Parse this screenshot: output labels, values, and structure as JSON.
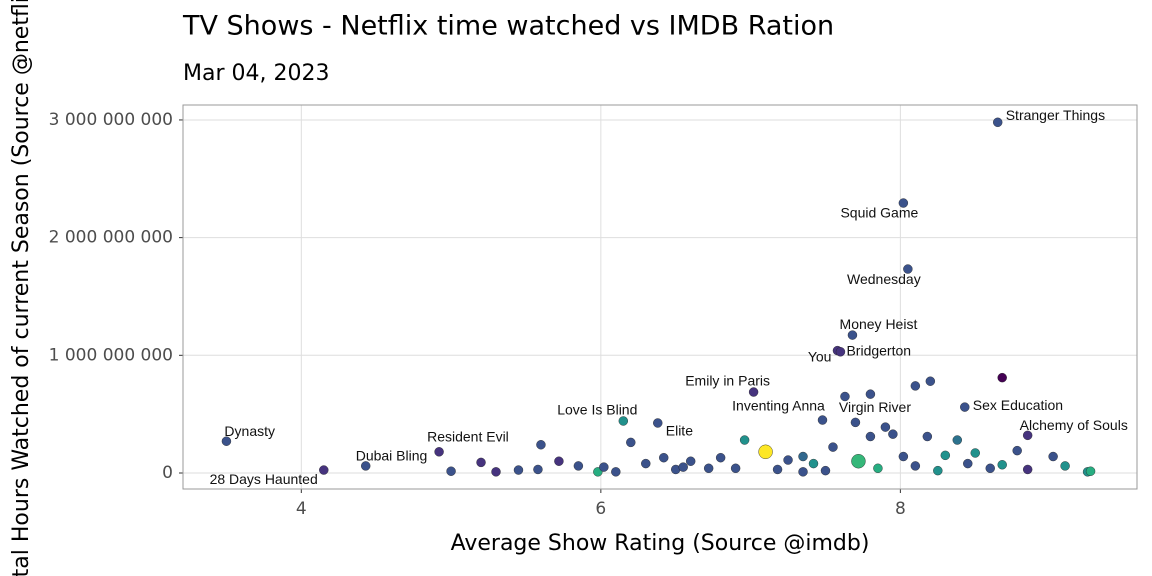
{
  "chart_data": {
    "type": "scatter",
    "title": "TV Shows - Netflix time watched vs IMDB Ration",
    "subtitle": "Mar 04, 2023",
    "x_label": "Average Show Rating (Source @imdb)",
    "y_label": "Total Hours Watched of current Season (Source @netflix)",
    "xlim": [
      3.21,
      9.58
    ],
    "xticks": [
      4,
      6,
      8
    ],
    "ylim": [
      -136000000,
      3127000000
    ],
    "yticks": [
      0,
      {
        "value": 1000000000,
        "label": "1 000 000 000"
      },
      {
        "value": 2000000000,
        "label": "2 000 000 000"
      },
      {
        "value": 3000000000,
        "label": "3 000 000 000"
      }
    ],
    "grid": true,
    "x": [
      8.65,
      8.02,
      8.05,
      7.68,
      7.58,
      7.6,
      7.02,
      6.15,
      6.38,
      7.48,
      7.63,
      8.43,
      8.85,
      3.5,
      4.92,
      4.43,
      4.15,
      5.0,
      5.2,
      5.45,
      5.6,
      5.72,
      5.85,
      5.98,
      6.02,
      6.2,
      6.3,
      6.42,
      6.5,
      6.6,
      6.72,
      6.8,
      6.9,
      6.96,
      7.1,
      7.18,
      7.25,
      7.35,
      7.42,
      7.5,
      7.55,
      7.7,
      7.72,
      7.8,
      7.85,
      7.9,
      7.95,
      8.02,
      8.1,
      8.18,
      8.25,
      8.3,
      8.38,
      8.45,
      8.5,
      8.6,
      8.68,
      8.78,
      8.85,
      9.02,
      9.1,
      9.25,
      9.27,
      8.68,
      8.2,
      8.1,
      7.8,
      6.1,
      6.55,
      7.35,
      5.3,
      5.58
    ],
    "values": [
      2980000000,
      2294000000,
      1733000000,
      1172000000,
      1040000000,
      1030000000,
      688000000,
      442000000,
      425000000,
      450000000,
      650000000,
      560000000,
      320000000,
      270000000,
      180000000,
      60000000,
      25000000,
      15000000,
      90000000,
      25000000,
      240000000,
      100000000,
      60000000,
      10000000,
      50000000,
      260000000,
      80000000,
      130000000,
      30000000,
      100000000,
      40000000,
      130000000,
      40000000,
      280000000,
      180000000,
      30000000,
      110000000,
      140000000,
      80000000,
      20000000,
      220000000,
      430000000,
      100000000,
      310000000,
      40000000,
      390000000,
      330000000,
      140000000,
      60000000,
      310000000,
      20000000,
      150000000,
      280000000,
      80000000,
      170000000,
      40000000,
      70000000,
      190000000,
      30000000,
      140000000,
      60000000,
      10000000,
      15000000,
      810000000,
      780000000,
      740000000,
      670000000,
      10000000,
      50000000,
      10000000,
      10000000,
      30000000
    ],
    "colors": [
      "#3b528b",
      "#3b528b",
      "#3b528b",
      "#3b528b",
      "#46337e",
      "#46337e",
      "#46337e",
      "#21918c",
      "#3b528b",
      "#3b528b",
      "#3b528b",
      "#3b528b",
      "#46337e",
      "#3b528b",
      "#46337e",
      "#3b528b",
      "#46337e",
      "#3b528b",
      "#46337e",
      "#3b528b",
      "#3b528b",
      "#46337e",
      "#3b528b",
      "#27ad81",
      "#3b528b",
      "#3b528b",
      "#3b528b",
      "#3b528b",
      "#3b528b",
      "#3b528b",
      "#3b528b",
      "#3b528b",
      "#3b528b",
      "#21918c",
      "#fde725",
      "#3b528b",
      "#3b528b",
      "#31688e",
      "#21918c",
      "#3b528b",
      "#3b528b",
      "#3b528b",
      "#35b779",
      "#3b528b",
      "#27ad81",
      "#3b528b",
      "#3b528b",
      "#3b528b",
      "#3b528b",
      "#3b528b",
      "#21918c",
      "#21918c",
      "#2c728e",
      "#3b528b",
      "#21918c",
      "#3b528b",
      "#21918c",
      "#3b528b",
      "#46337e",
      "#3b528b",
      "#21918c",
      "#21918c",
      "#27ad81",
      "#440154",
      "#3b528b",
      "#3b528b",
      "#3b528b",
      "#3b528b",
      "#3b528b",
      "#3b528b",
      "#46337e",
      "#3b528b"
    ],
    "labels": [
      "Stranger Things",
      "Squid Game",
      "Wednesday",
      "Money Heist",
      "You",
      "Bridgerton",
      "Emily in Paris",
      "Love Is Blind",
      "Elite",
      "Inventing Anna",
      "Virgin River",
      "Sex Education",
      "Alchemy of Souls",
      "Dynasty",
      "Resident Evil",
      "Dubai Bling",
      "28 Days Haunted",
      null,
      null,
      null,
      null,
      null,
      null,
      null,
      null,
      null,
      null,
      null,
      null,
      null,
      null,
      null,
      null,
      null,
      null,
      null,
      null,
      null,
      null,
      null,
      null,
      null,
      null,
      null,
      null,
      null,
      null,
      null,
      null,
      null,
      null,
      null,
      null,
      null,
      null,
      null,
      null,
      null,
      null,
      null,
      null,
      null,
      null,
      null,
      null,
      null,
      null,
      null,
      null,
      null,
      null
    ]
  }
}
